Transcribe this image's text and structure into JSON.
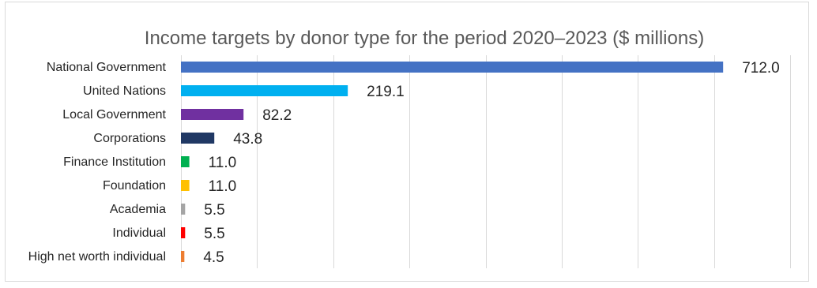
{
  "chart_data": {
    "type": "bar",
    "orientation": "horizontal",
    "title": "Income targets by donor type for the period 2020–2023 ($ millions)",
    "xlabel": "",
    "ylabel": "",
    "xlim": [
      0,
      800
    ],
    "grid": true,
    "legend": "none",
    "categories": [
      "National Government",
      "United Nations",
      "Local Government",
      "Corporations",
      "Finance Institution",
      "Foundation",
      "Academia",
      "Individual",
      "High net worth individual"
    ],
    "values": [
      712.0,
      219.1,
      82.2,
      43.8,
      11.0,
      11.0,
      5.5,
      5.5,
      4.5
    ],
    "value_labels": [
      "712.0",
      "219.1",
      "82.2",
      "43.8",
      "11.0",
      "11.0",
      "5.5",
      "5.5",
      "4.5"
    ],
    "colors": [
      "#4472c4",
      "#00b0f0",
      "#7030a0",
      "#203864",
      "#00b050",
      "#ffc000",
      "#a5a5a5",
      "#ff0000",
      "#ed7d31"
    ]
  }
}
